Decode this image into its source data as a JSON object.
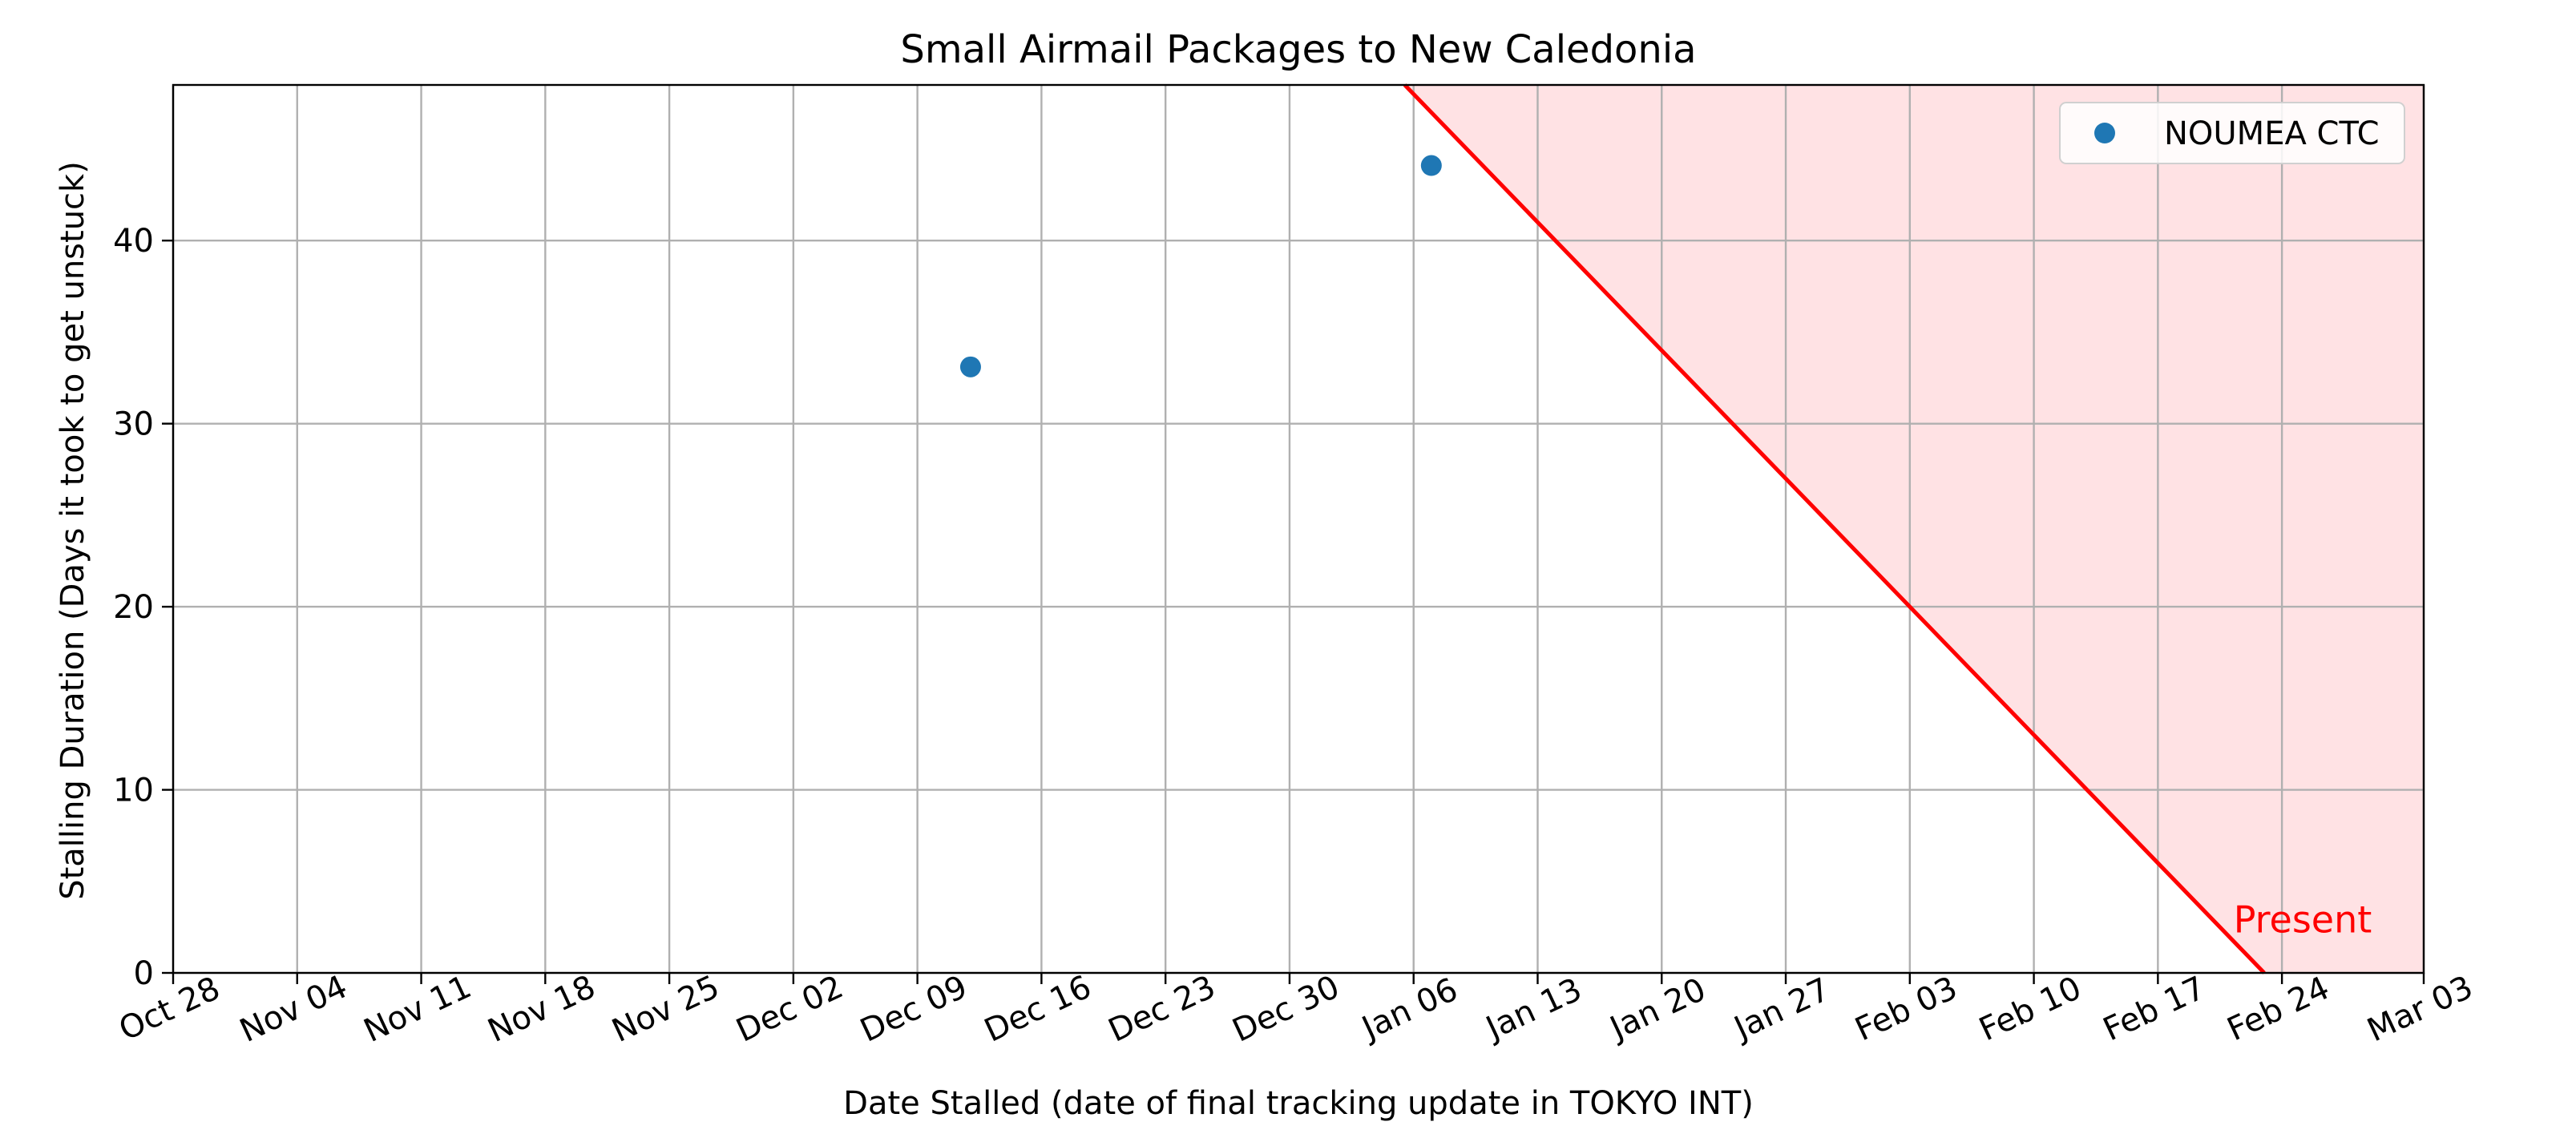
{
  "chart_data": {
    "type": "scatter",
    "title": "Small Airmail Packages to New Caledonia",
    "xlabel": "Date Stalled (date of final tracking update in TOKYO INT)",
    "ylabel": "Stalling Duration (Days it took to get unstuck)",
    "xlim": [
      "Oct 28",
      "Mar 03"
    ],
    "ylim": [
      0,
      48.5
    ],
    "grid": true,
    "legend_position": "top-right",
    "x_ticks": [
      "Oct 28",
      "Nov 04",
      "Nov 11",
      "Nov 18",
      "Nov 25",
      "Dec 02",
      "Dec 09",
      "Dec 16",
      "Dec 23",
      "Dec 30",
      "Jan 06",
      "Jan 13",
      "Jan 20",
      "Jan 27",
      "Feb 03",
      "Feb 10",
      "Feb 17",
      "Feb 24",
      "Mar 03"
    ],
    "y_ticks": [
      0,
      10,
      20,
      30,
      40
    ],
    "series": [
      {
        "name": "NOUMEA CTC",
        "color": "#1f77b4",
        "points": [
          {
            "x": "Dec 12",
            "y": 33.1
          },
          {
            "x": "Jan 07",
            "y": 44.1
          }
        ]
      }
    ],
    "present_line": {
      "label": "Present",
      "color": "#ff0000",
      "x_at_zero": "Feb 23",
      "shade_color": "#ffe2e4"
    }
  }
}
